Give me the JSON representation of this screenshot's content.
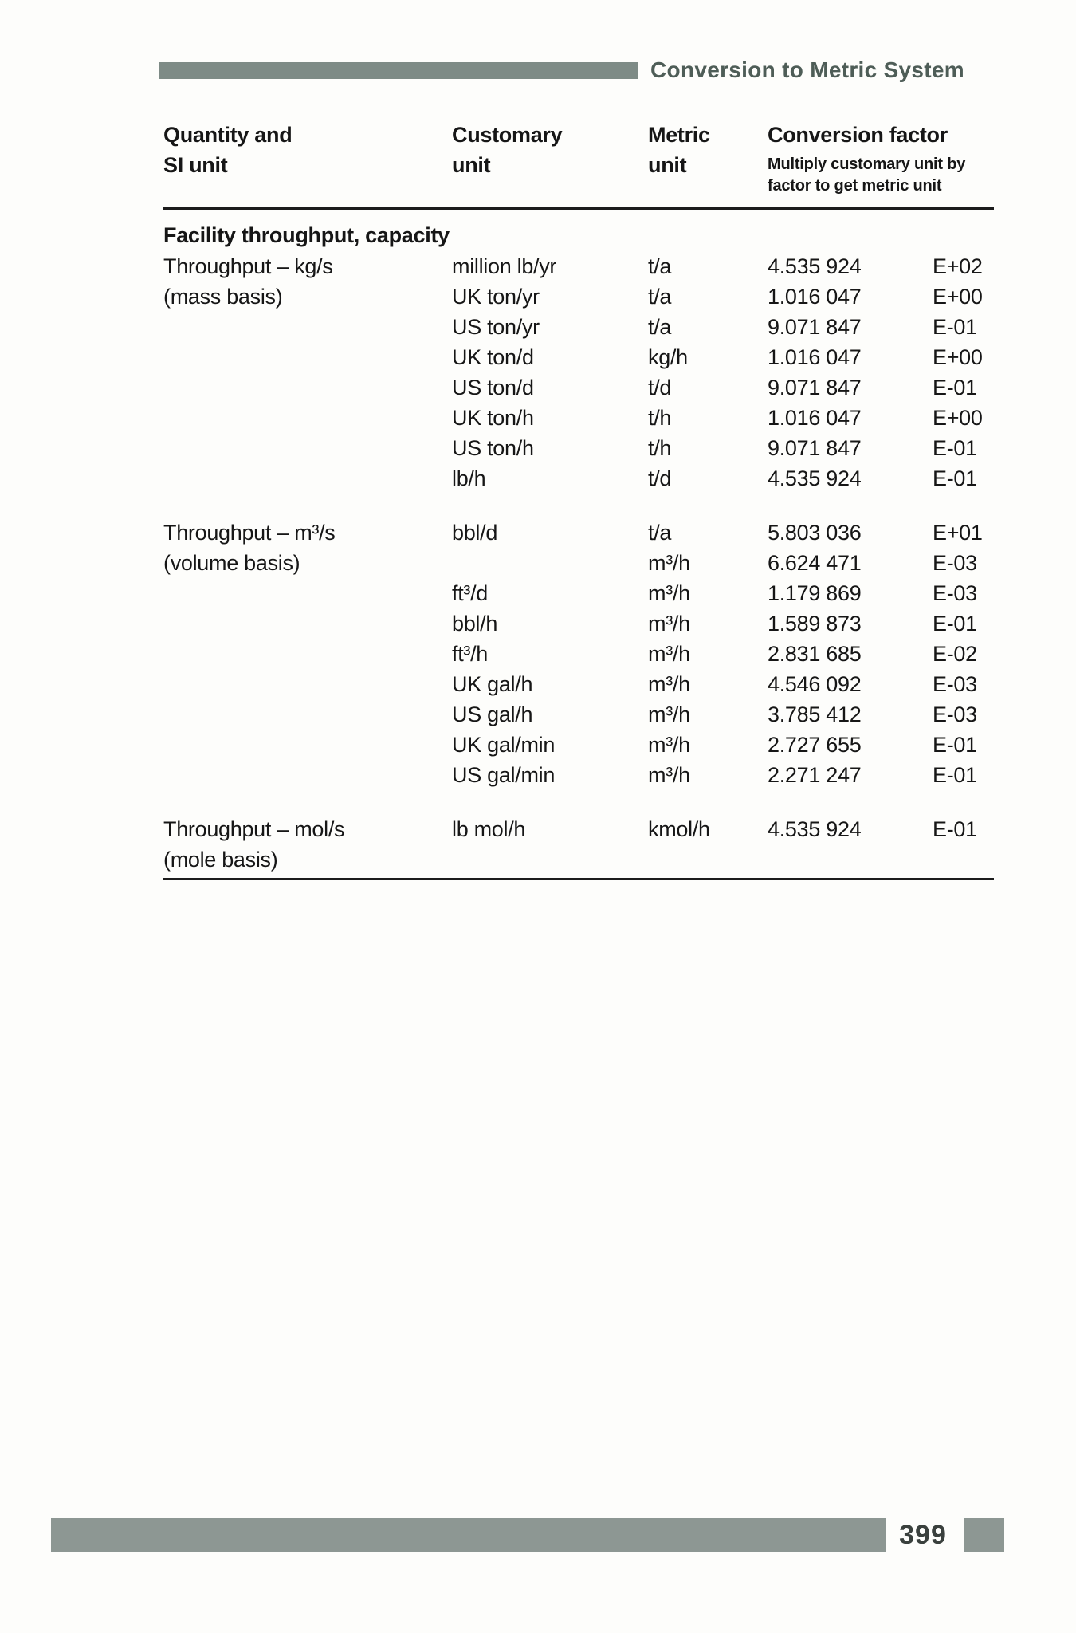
{
  "header": {
    "title": "Conversion to Metric System"
  },
  "table": {
    "columns": {
      "quantity": {
        "line1": "Quantity and",
        "line2": "SI unit"
      },
      "customary": {
        "line1": "Customary",
        "line2": "unit"
      },
      "metric": {
        "line1": "Metric",
        "line2": "unit"
      },
      "factor": {
        "line1": "Conversion factor",
        "subtitle": "Multiply customary unit by factor to get metric unit"
      }
    },
    "section_title": "Facility throughput, capacity",
    "groups": [
      {
        "quantity_line1": "Throughput – kg/s",
        "quantity_line2": "(mass basis)",
        "rows": [
          {
            "customary": "million lb/yr",
            "metric": "t/a",
            "factor": "4.535 924",
            "exp": "E+02"
          },
          {
            "customary": "UK ton/yr",
            "metric": "t/a",
            "factor": "1.016 047",
            "exp": "E+00"
          },
          {
            "customary": "US ton/yr",
            "metric": "t/a",
            "factor": "9.071 847",
            "exp": "E-01"
          },
          {
            "customary": "UK ton/d",
            "metric": "kg/h",
            "factor": "1.016 047",
            "exp": "E+00"
          },
          {
            "customary": "US ton/d",
            "metric": "t/d",
            "factor": "9.071 847",
            "exp": "E-01"
          },
          {
            "customary": "UK ton/h",
            "metric": "t/h",
            "factor": "1.016 047",
            "exp": "E+00"
          },
          {
            "customary": "US ton/h",
            "metric": "t/h",
            "factor": "9.071 847",
            "exp": "E-01"
          },
          {
            "customary": "lb/h",
            "metric": "t/d",
            "factor": "4.535 924",
            "exp": "E-01"
          }
        ]
      },
      {
        "quantity_line1": "Throughput – m³/s",
        "quantity_line2": "(volume basis)",
        "rows": [
          {
            "customary": "bbl/d",
            "metric": "t/a",
            "factor": "5.803 036",
            "exp": "E+01"
          },
          {
            "customary": "",
            "metric": "m³/h",
            "factor": "6.624 471",
            "exp": "E-03"
          },
          {
            "customary": "ft³/d",
            "metric": "m³/h",
            "factor": "1.179 869",
            "exp": "E-03"
          },
          {
            "customary": "bbl/h",
            "metric": "m³/h",
            "factor": "1.589 873",
            "exp": "E-01"
          },
          {
            "customary": "ft³/h",
            "metric": "m³/h",
            "factor": "2.831 685",
            "exp": "E-02"
          },
          {
            "customary": "UK gal/h",
            "metric": "m³/h",
            "factor": "4.546 092",
            "exp": "E-03"
          },
          {
            "customary": "US gal/h",
            "metric": "m³/h",
            "factor": "3.785 412",
            "exp": "E-03"
          },
          {
            "customary": "UK gal/min",
            "metric": "m³/h",
            "factor": "2.727 655",
            "exp": "E-01"
          },
          {
            "customary": "US gal/min",
            "metric": "m³/h",
            "factor": "2.271 247",
            "exp": "E-01"
          }
        ]
      },
      {
        "quantity_line1": "Throughput – mol/s",
        "quantity_line2": "(mole basis)",
        "rows": [
          {
            "customary": "lb mol/h",
            "metric": "kmol/h",
            "factor": "4.535 924",
            "exp": "E-01"
          }
        ]
      }
    ]
  },
  "footer": {
    "page_number": "399"
  },
  "colors": {
    "header_bar": "#7e8b86",
    "header_title": "#4e5d57",
    "footer_bar": "#8d9793",
    "page_number": "#3a403d",
    "rule": "#1c1c1c"
  }
}
